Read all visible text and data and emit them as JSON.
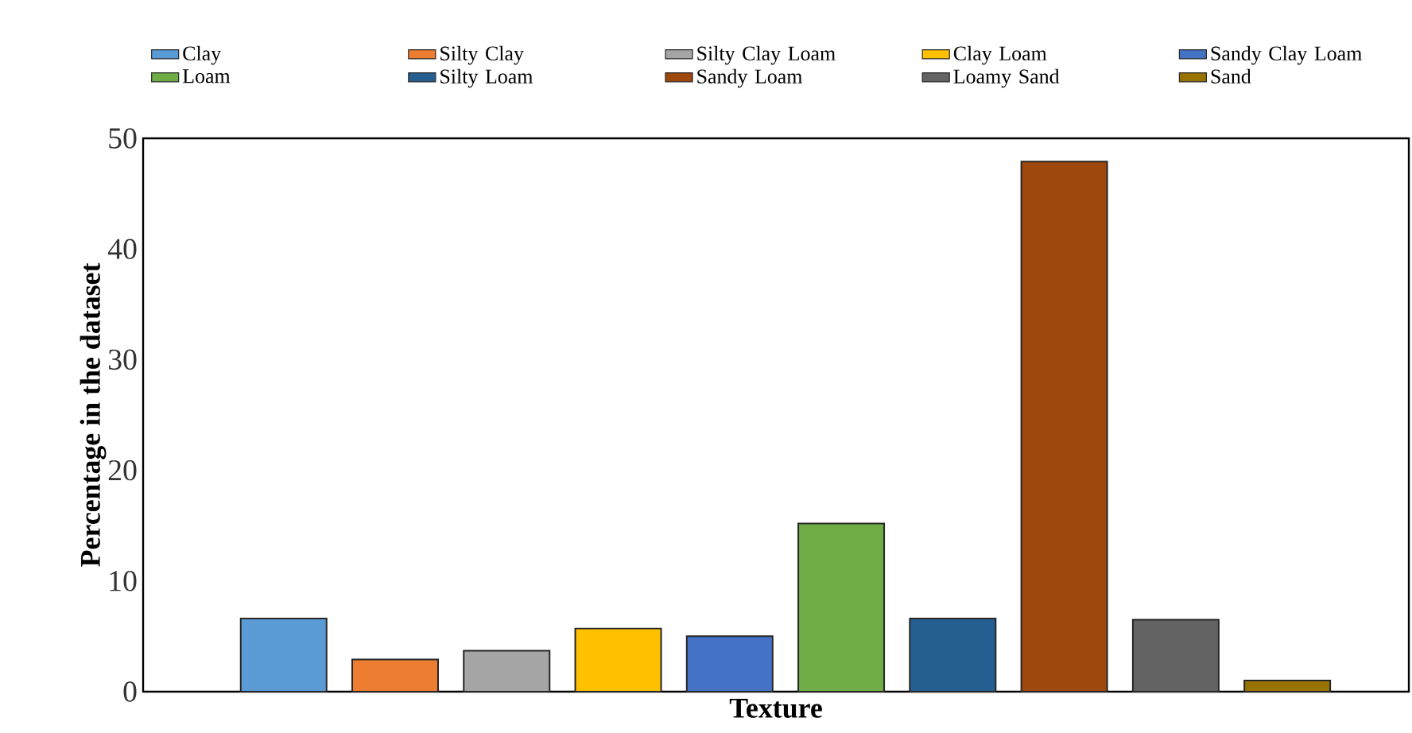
{
  "chart_data": {
    "type": "bar",
    "stacked": true,
    "xlabel": "Texture",
    "ylabel": "Percentage in the dataset",
    "categories": [
      null,
      null,
      null,
      null,
      null,
      null,
      null,
      null,
      null,
      null
    ],
    "series": [
      {
        "name": "Clay",
        "color": "#5b9bd5",
        "values": [
          6.6,
          null,
          null,
          null,
          null,
          null,
          null,
          null,
          null,
          null
        ]
      },
      {
        "name": "Silty Clay",
        "color": "#ed7d31",
        "values": [
          null,
          2.9,
          null,
          null,
          null,
          null,
          null,
          null,
          null,
          null
        ]
      },
      {
        "name": "Silty Clay Loam",
        "color": "#a5a5a5",
        "values": [
          null,
          null,
          3.7,
          null,
          null,
          null,
          null,
          null,
          null,
          null
        ]
      },
      {
        "name": "Clay Loam",
        "color": "#ffc000",
        "values": [
          null,
          null,
          null,
          5.7,
          null,
          null,
          null,
          null,
          null,
          null
        ]
      },
      {
        "name": "Sandy Clay Loam",
        "color": "#4472c4",
        "values": [
          null,
          null,
          null,
          null,
          5.0,
          null,
          null,
          null,
          null,
          null
        ]
      },
      {
        "name": "Loam",
        "color": "#70ad47",
        "values": [
          null,
          null,
          null,
          null,
          null,
          15.2,
          null,
          null,
          null,
          null
        ]
      },
      {
        "name": "Silty Loam",
        "color": "#255e91",
        "values": [
          null,
          null,
          null,
          null,
          null,
          null,
          6.6,
          null,
          null,
          null
        ]
      },
      {
        "name": "Sandy Loam",
        "color": "#9e480e",
        "values": [
          null,
          null,
          null,
          null,
          null,
          null,
          null,
          47.9,
          null,
          null
        ]
      },
      {
        "name": "Loamy Sand",
        "color": "#636363",
        "values": [
          null,
          null,
          null,
          null,
          null,
          null,
          null,
          null,
          6.5,
          null
        ]
      },
      {
        "name": "Sand",
        "color": "#997300",
        "values": [
          null,
          null,
          null,
          null,
          null,
          null,
          null,
          null,
          null,
          1.0
        ]
      }
    ],
    "ylim": [
      0,
      50
    ],
    "yticks": [
      0,
      10,
      20,
      30,
      40,
      50
    ],
    "tick_labels": "y",
    "grid": false,
    "legend": "top"
  }
}
